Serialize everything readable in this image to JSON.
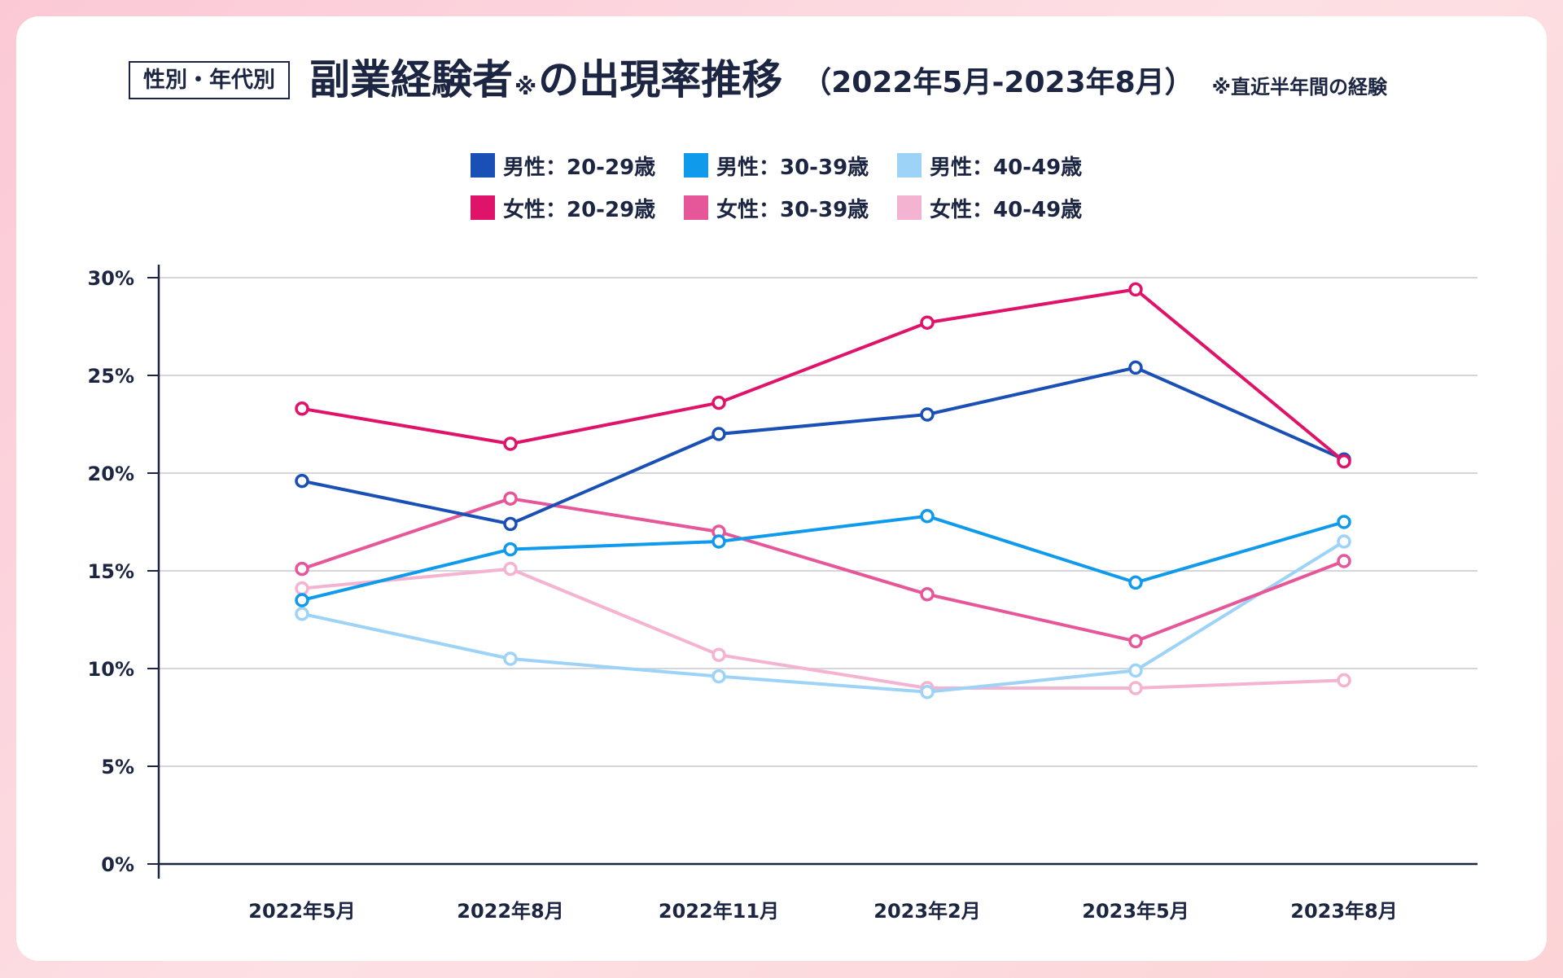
{
  "header": {
    "tag": "性別・年代別",
    "title_main": "副業経験者",
    "title_mark": "※",
    "title_rest": "の出現率推移",
    "period": "（2022年5月-2023年8月）",
    "note": "※直近半年間の経験"
  },
  "chart_data": {
    "type": "line",
    "title": "副業経験者の出現率推移",
    "categories": [
      "2022年5月",
      "2022年8月",
      "2022年11月",
      "2023年2月",
      "2023年5月",
      "2023年8月"
    ],
    "y_ticks": [
      "0%",
      "5%",
      "10%",
      "15%",
      "20%",
      "25%",
      "30%"
    ],
    "ylim": [
      0,
      30
    ],
    "grid": true,
    "legend_position": "top-center",
    "series": [
      {
        "name": "男性：20-29歳",
        "color": "#1a4fb5",
        "values": [
          19.6,
          17.4,
          22.0,
          23.0,
          25.4,
          20.7
        ]
      },
      {
        "name": "男性：30-39歳",
        "color": "#0f9aec",
        "values": [
          13.5,
          16.1,
          16.5,
          17.8,
          14.4,
          17.5
        ]
      },
      {
        "name": "男性：40-49歳",
        "color": "#9dd3f7",
        "values": [
          12.8,
          10.5,
          9.6,
          8.8,
          9.9,
          16.5
        ]
      },
      {
        "name": "女性：20-29歳",
        "color": "#e0136a",
        "values": [
          23.3,
          21.5,
          23.6,
          27.7,
          29.4,
          20.6
        ]
      },
      {
        "name": "女性：30-39歳",
        "color": "#e6579a",
        "values": [
          15.1,
          18.7,
          17.0,
          13.8,
          11.4,
          15.5
        ]
      },
      {
        "name": "女性：40-49歳",
        "color": "#f4b3d1",
        "values": [
          14.1,
          15.1,
          10.7,
          9.0,
          9.0,
          9.4
        ]
      }
    ]
  }
}
